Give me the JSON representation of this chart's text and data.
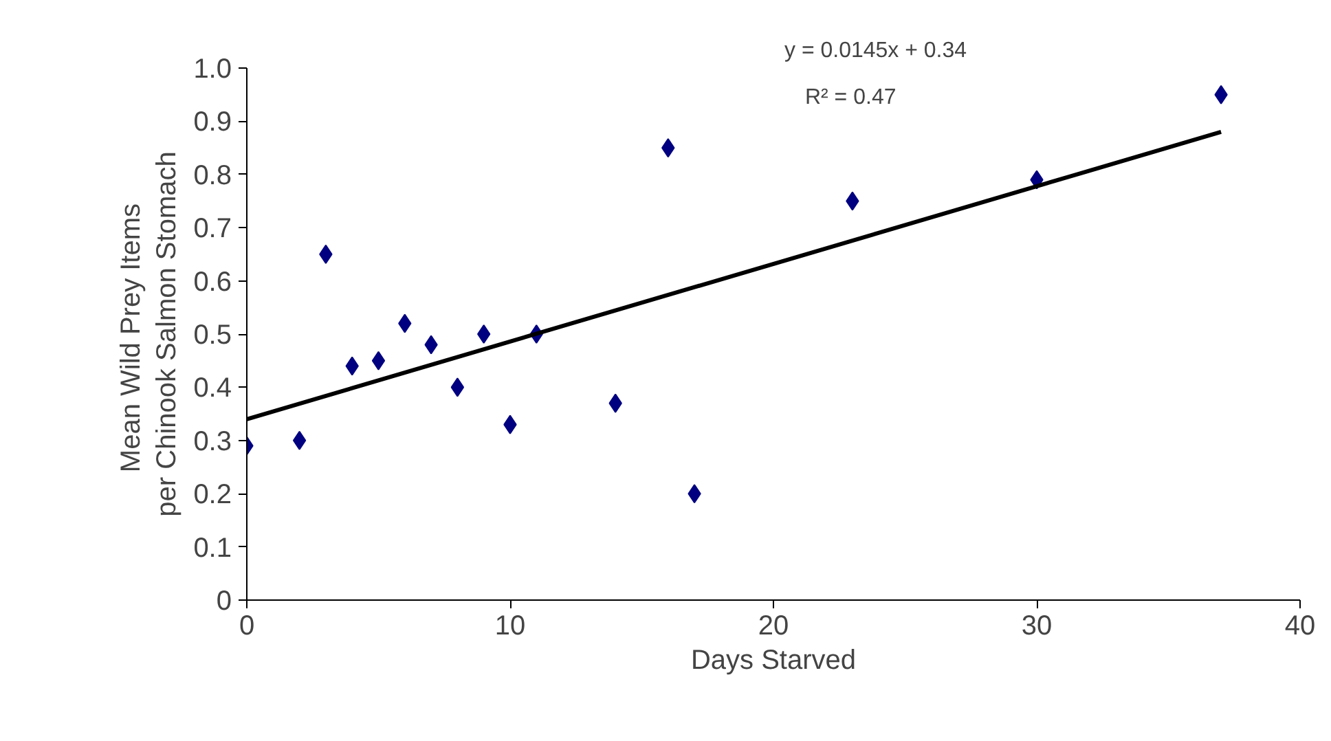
{
  "chart_data": {
    "type": "scatter",
    "xlabel": "Days Starved",
    "ylabel": "Mean  Wild Prey Items\nper Chinook Salmon Stomach",
    "annotations": [
      "y = 0.0145x + 0.34",
      "R² = 0.47"
    ],
    "xlim": [
      0,
      40
    ],
    "xticks": [
      0,
      10,
      20,
      30,
      40
    ],
    "ylim": [
      0,
      1
    ],
    "yticks": [
      0,
      0.1,
      0.2,
      0.3,
      0.4,
      0.5,
      0.6,
      0.7,
      0.8,
      0.9,
      {
        "value": 1,
        "label": "1.0"
      }
    ],
    "grid": false,
    "series": [
      {
        "color": "#000080",
        "marker": "diamond",
        "x": [
          0,
          2,
          3,
          4,
          5,
          6,
          7,
          8,
          9,
          10,
          11,
          14,
          16,
          17,
          23,
          30,
          37
        ],
        "values": [
          0.29,
          0.3,
          0.65,
          0.44,
          0.45,
          0.52,
          0.48,
          0.4,
          0.5,
          0.33,
          0.5,
          0.37,
          0.85,
          0.2,
          0.75,
          0.79,
          0.95
        ]
      },
      {
        "type": "line",
        "color": "#000000",
        "x": [
          0,
          37
        ],
        "values": [
          0.34,
          0.88
        ]
      }
    ]
  }
}
